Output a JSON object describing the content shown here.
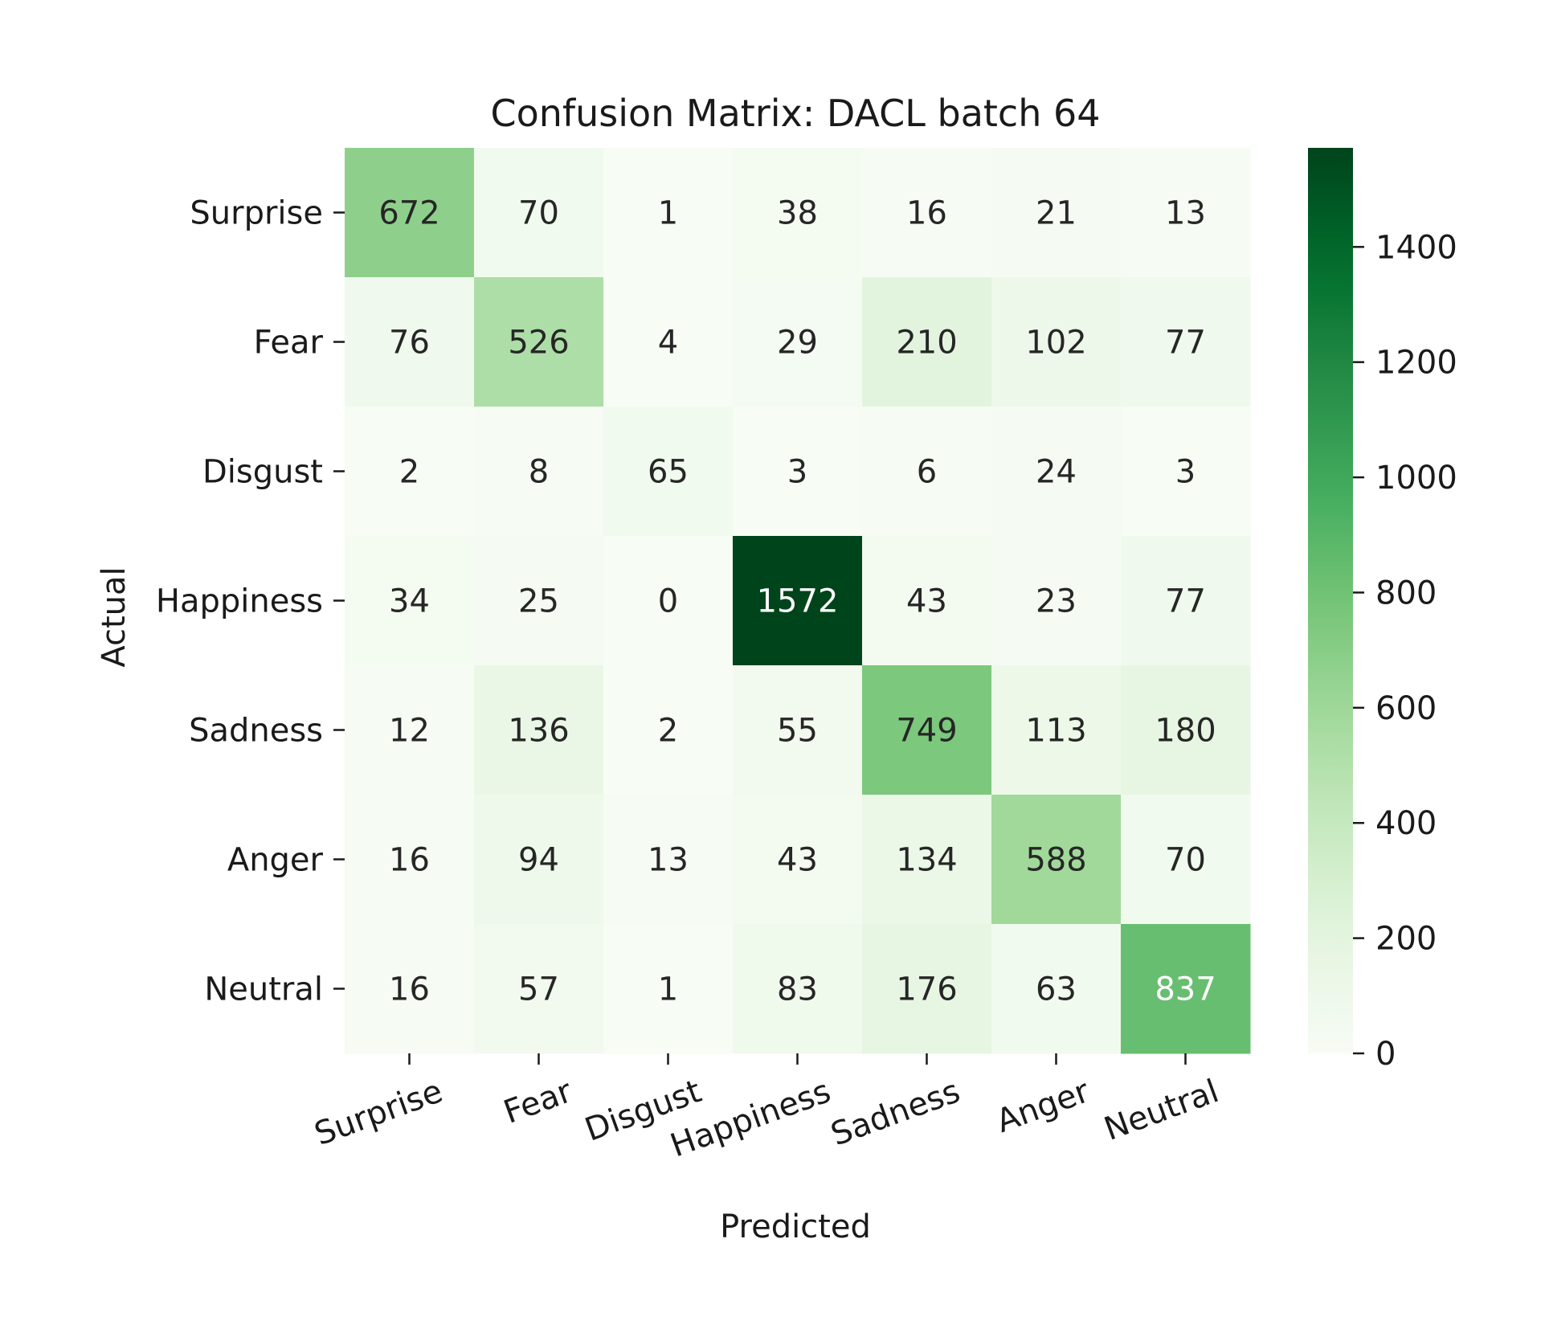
{
  "chart_data": {
    "type": "heatmap",
    "title": "Confusion Matrix: DACL batch 64",
    "xlabel": "Predicted",
    "ylabel": "Actual",
    "x_categories": [
      "Surprise",
      "Fear",
      "Disgust",
      "Happiness",
      "Sadness",
      "Anger",
      "Neutral"
    ],
    "y_categories": [
      "Surprise",
      "Fear",
      "Disgust",
      "Happiness",
      "Sadness",
      "Anger",
      "Neutral"
    ],
    "values": [
      [
        672,
        70,
        1,
        38,
        16,
        21,
        13
      ],
      [
        76,
        526,
        4,
        29,
        210,
        102,
        77
      ],
      [
        2,
        8,
        65,
        3,
        6,
        24,
        3
      ],
      [
        34,
        25,
        0,
        1572,
        43,
        23,
        77
      ],
      [
        12,
        136,
        2,
        55,
        749,
        113,
        180
      ],
      [
        16,
        94,
        13,
        43,
        134,
        588,
        70
      ],
      [
        16,
        57,
        1,
        83,
        176,
        63,
        837
      ]
    ],
    "colorbar": {
      "range": [
        0,
        1572
      ],
      "ticks": [
        0,
        200,
        400,
        600,
        800,
        1000,
        1200,
        1400
      ],
      "colormap": "Greens"
    },
    "x_tick_rotation_deg": 20
  }
}
